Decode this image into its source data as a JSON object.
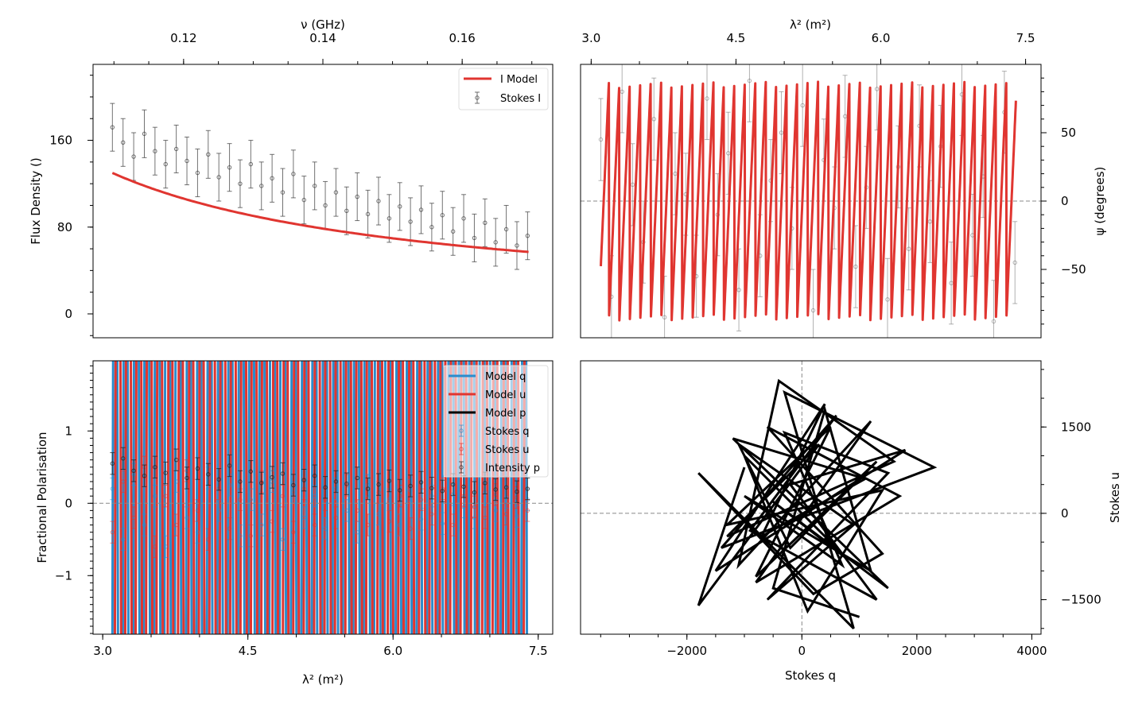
{
  "colors": {
    "model_red": "#e03530",
    "model_blue": "#2a8ccc",
    "data_gray": "#555555",
    "black": "#000000"
  },
  "chart_data": [
    {
      "id": "flux",
      "type": "scatter",
      "title": "",
      "xlabel": "",
      "ylabel": "Flux Density ()",
      "top_xlabel": "ν (GHz)",
      "xlim": [
        2.9,
        7.65
      ],
      "ylim": [
        -22,
        230
      ],
      "nu_lim": [
        0.107,
        0.173
      ],
      "yticks": [
        0,
        80,
        160
      ],
      "yticklabels": [
        "0",
        "80",
        "160"
      ],
      "top_xticks": [
        0.12,
        0.14,
        0.16
      ],
      "top_xticklabels": [
        "0.12",
        "0.14",
        "0.16"
      ],
      "legend": {
        "position": "top-right",
        "entries": [
          "I Model",
          "Stokes I"
        ]
      },
      "model": {
        "name": "I Model",
        "I0": 130,
        "nu0": 0.1703,
        "alpha": 1.89,
        "lam2_range": [
          3.1,
          7.4
        ]
      },
      "series": {
        "name": "Stokes I",
        "x": [
          3.1,
          3.21,
          3.32,
          3.43,
          3.54,
          3.65,
          3.76,
          3.87,
          3.98,
          4.09,
          4.2,
          4.31,
          4.42,
          4.53,
          4.64,
          4.75,
          4.86,
          4.97,
          5.08,
          5.19,
          5.3,
          5.41,
          5.52,
          5.63,
          5.74,
          5.85,
          5.96,
          6.07,
          6.18,
          6.29,
          6.4,
          6.51,
          6.62,
          6.73,
          6.84,
          6.95,
          7.06,
          7.17,
          7.28,
          7.39
        ],
        "y": [
          172,
          158,
          145,
          166,
          150,
          138,
          152,
          141,
          130,
          147,
          126,
          135,
          120,
          138,
          118,
          125,
          112,
          129,
          105,
          118,
          100,
          112,
          95,
          108,
          92,
          104,
          88,
          99,
          85,
          96,
          80,
          91,
          76,
          88,
          70,
          84,
          66,
          78,
          63,
          72
        ],
        "yerr": 22
      }
    },
    {
      "id": "psi",
      "type": "scatter",
      "top_xlabel": "λ² (m²)",
      "ylabel": "ψ (degrees)",
      "xlim": [
        2.89,
        7.66
      ],
      "ylim": [
        -100,
        100
      ],
      "top_xticks": [
        3.0,
        4.5,
        6.0,
        7.5
      ],
      "top_xticklabels": [
        "3.0",
        "4.5",
        "6.0",
        "7.5"
      ],
      "yticks": [
        -50,
        0,
        50
      ],
      "yticklabels": [
        "−50",
        "0",
        "50"
      ],
      "model": {
        "psi0_deg": 20,
        "RM": 29,
        "lam2_range": [
          3.1,
          7.4
        ]
      },
      "series": {
        "x": [
          3.1,
          3.21,
          3.32,
          3.43,
          3.54,
          3.65,
          3.76,
          3.87,
          3.98,
          4.09,
          4.2,
          4.31,
          4.42,
          4.53,
          4.64,
          4.75,
          4.86,
          4.97,
          5.08,
          5.19,
          5.3,
          5.41,
          5.52,
          5.63,
          5.74,
          5.85,
          5.96,
          6.07,
          6.18,
          6.29,
          6.4,
          6.51,
          6.62,
          6.73,
          6.84,
          6.95,
          7.06,
          7.17,
          7.28,
          7.39
        ],
        "y": [
          45,
          -70,
          80,
          12,
          -30,
          60,
          -85,
          20,
          5,
          -55,
          75,
          -10,
          35,
          -65,
          88,
          -40,
          15,
          50,
          -20,
          70,
          -80,
          30,
          -5,
          62,
          -48,
          10,
          82,
          -72,
          25,
          -35,
          55,
          -15,
          40,
          -60,
          78,
          -25,
          18,
          -88,
          65,
          -45
        ],
        "yerr": 30
      }
    },
    {
      "id": "frac",
      "type": "scatter",
      "xlabel": "λ² (m²)",
      "ylabel": "Fractional Polarisation",
      "xlim": [
        2.9,
        7.65
      ],
      "ylim": [
        -1.81,
        1.97
      ],
      "xticks": [
        3.0,
        4.5,
        6.0,
        7.5
      ],
      "xticklabels": [
        "3.0",
        "4.5",
        "6.0",
        "7.5"
      ],
      "yticks": [
        -1,
        0,
        1
      ],
      "yticklabels": [
        "−1",
        "0",
        "1"
      ],
      "legend": {
        "position": "top-right",
        "entries": [
          "Model q",
          "Model u",
          "Model p",
          "Stokes q",
          "Stokes u",
          "Intensity p"
        ]
      },
      "model": {
        "amplitude": 3000,
        "psi0_deg": 20,
        "RM": 29,
        "lam2_range": [
          3.1,
          7.4
        ]
      },
      "x": [
        3.1,
        3.21,
        3.32,
        3.43,
        3.54,
        3.65,
        3.76,
        3.87,
        3.98,
        4.09,
        4.2,
        4.31,
        4.42,
        4.53,
        4.64,
        4.75,
        4.86,
        4.97,
        5.08,
        5.19,
        5.3,
        5.41,
        5.52,
        5.63,
        5.74,
        5.85,
        5.96,
        6.07,
        6.18,
        6.29,
        6.4,
        6.51,
        6.62,
        6.73,
        6.84,
        6.95,
        7.06,
        7.17,
        7.28,
        7.39
      ],
      "series": [
        {
          "name": "Stokes q",
          "yerr": 0.15,
          "values": [
            0.2,
            -0.5,
            0.4,
            -0.3,
            0.1,
            -0.6,
            0.3,
            -0.2,
            -0.4,
            0.35,
            -0.1,
            0.25,
            -0.45,
            0.05,
            -0.3,
            0.3,
            -0.5,
            0.15,
            -0.2,
            0.1,
            -0.35,
            0.2,
            -0.1,
            -0.4,
            0.25,
            -0.15,
            0.05,
            -0.3,
            0.18,
            -0.22,
            0.1,
            -0.28,
            0.12,
            -0.05,
            -0.2,
            0.15,
            -0.1,
            0.08,
            -0.18,
            0.05
          ]
        },
        {
          "name": "Stokes u",
          "yerr": 0.15,
          "values": [
            -0.4,
            0.3,
            -0.2,
            0.5,
            -0.6,
            0.1,
            -0.3,
            0.45,
            -0.1,
            -0.5,
            0.2,
            -0.35,
            0.05,
            -0.45,
            0.3,
            -0.25,
            0.1,
            -0.4,
            0.2,
            -0.3,
            0.05,
            -0.2,
            0.25,
            -0.1,
            -0.3,
            0.15,
            -0.25,
            0.1,
            -0.35,
            0.05,
            -0.15,
            0.2,
            -0.3,
            0.1,
            -0.05,
            -0.2,
            0.12,
            -0.15,
            0.08,
            -0.1
          ]
        },
        {
          "name": "Intensity p",
          "yerr": 0.15,
          "values": [
            0.55,
            0.62,
            0.45,
            0.38,
            0.5,
            0.42,
            0.6,
            0.35,
            0.48,
            0.4,
            0.33,
            0.52,
            0.3,
            0.44,
            0.28,
            0.36,
            0.41,
            0.25,
            0.32,
            0.38,
            0.22,
            0.3,
            0.27,
            0.35,
            0.2,
            0.26,
            0.31,
            0.18,
            0.24,
            0.29,
            0.21,
            0.17,
            0.26,
            0.23,
            0.15,
            0.28,
            0.19,
            0.22,
            0.16,
            0.2
          ]
        }
      ]
    },
    {
      "id": "qu",
      "type": "line",
      "xlabel": "Stokes q",
      "ylabel": "Stokes u",
      "xlim": [
        -3850,
        4160
      ],
      "ylim": [
        -2100,
        2650
      ],
      "xticks": [
        -2000,
        0,
        2000,
        4000
      ],
      "xticklabels": [
        "−2000",
        "0",
        "2000",
        "4000"
      ],
      "yticks": [
        -1500,
        0,
        1500
      ],
      "yticklabels": [
        "−1500",
        "0",
        "1500"
      ],
      "q": [
        -1000,
        -1800,
        300,
        -1300,
        1600,
        -400,
        -1100,
        1200,
        -800,
        1700,
        -600,
        1400,
        200,
        -1800,
        900,
        -300,
        2300,
        -1400,
        600,
        -900,
        1300,
        -200,
        1800,
        -1500,
        400,
        -700,
        1100,
        -1200,
        1500,
        -500,
        800,
        -1000,
        100,
        1400,
        -1300,
        500,
        -800,
        1300,
        -200,
        -1100,
        900,
        -600,
        1500,
        -300,
        700,
        -1000,
        1200,
        400,
        -500,
        1000
      ],
      "u": [
        800,
        -1600,
        1200,
        -400,
        900,
        2300,
        -900,
        1600,
        -1200,
        300,
        1500,
        -700,
        -1400,
        700,
        -2000,
        2100,
        800,
        -600,
        1700,
        -300,
        -1500,
        500,
        1100,
        -1000,
        1900,
        -400,
        600,
        1300,
        -1300,
        200,
        -800,
        1000,
        -1700,
        400,
        -200,
        1500,
        -1100,
        900,
        -600,
        1200,
        -200,
        -1500,
        700,
        1400,
        -900,
        300,
        -1000,
        1800,
        -1300,
        -1800
      ]
    }
  ]
}
